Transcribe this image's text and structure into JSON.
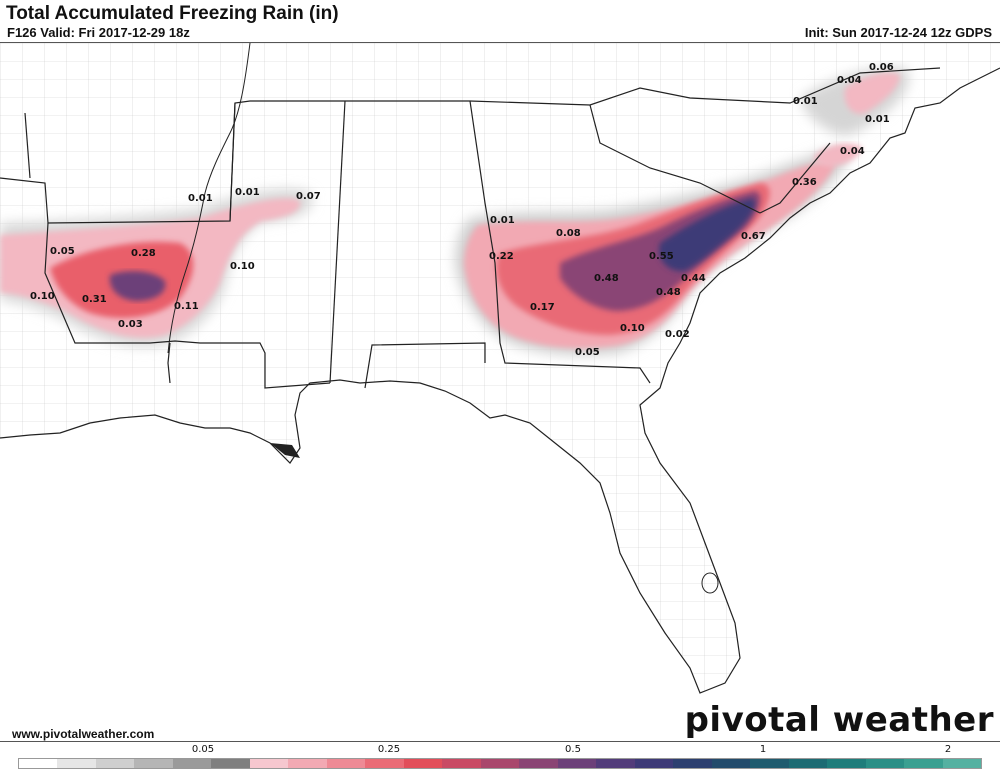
{
  "header": {
    "title": "Total Accumulated Freezing Rain (in)",
    "valid": "F126 Valid: Fri 2017-12-29 18z",
    "init": "Init: Sun 2017-12-24 12z GDPS"
  },
  "footer": {
    "website": "www.pivotalweather.com",
    "logo_prefix": "piv",
    "logo_o": "o",
    "logo_suffix": "tal weather"
  },
  "values": [
    {
      "text": "0.06"
    },
    {
      "text": "0.04"
    },
    {
      "text": "0.01"
    },
    {
      "text": "0.01"
    },
    {
      "text": "0.04"
    },
    {
      "text": "0.36"
    },
    {
      "text": "0.67"
    },
    {
      "text": "0.55"
    },
    {
      "text": "0.48"
    },
    {
      "text": "0.44"
    },
    {
      "text": "0.48"
    },
    {
      "text": "0.22"
    },
    {
      "text": "0.17"
    },
    {
      "text": "0.10"
    },
    {
      "text": "0.02"
    },
    {
      "text": "0.05"
    },
    {
      "text": "0.08"
    },
    {
      "text": "0.01"
    },
    {
      "text": "0.01"
    },
    {
      "text": "0.01"
    },
    {
      "text": "0.07"
    },
    {
      "text": "0.05"
    },
    {
      "text": "0.28"
    },
    {
      "text": "0.10"
    },
    {
      "text": "0.31"
    },
    {
      "text": "0.11"
    },
    {
      "text": "0.10"
    },
    {
      "text": "0.03"
    }
  ],
  "legend": {
    "labels": [
      "0.05",
      "0.25",
      "0.5",
      "1",
      "2"
    ],
    "colors": [
      "#ffffff",
      "#e6e6e6",
      "#cfcfcf",
      "#b5b5b5",
      "#9a9a9a",
      "#7f7f7f",
      "#f6c7cf",
      "#f2a9b3",
      "#ee8a95",
      "#ea6b76",
      "#e24e5a",
      "#c94a64",
      "#a9476c",
      "#8a4474",
      "#6c4079",
      "#523c7a",
      "#3d3a77",
      "#2c3f6f",
      "#234b6b",
      "#1f5b6e",
      "#1d6b73",
      "#1f7d7b",
      "#2a8f86",
      "#3aa091",
      "#55b1a1"
    ]
  },
  "colors": {
    "border": "#222222",
    "county": "#bdbdbd"
  }
}
